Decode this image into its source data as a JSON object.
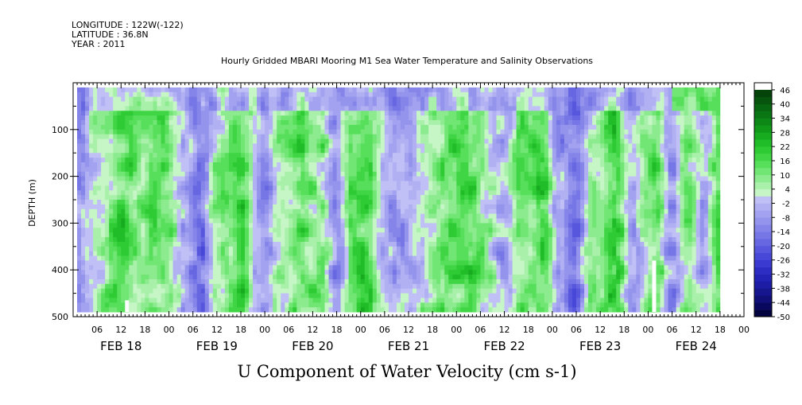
{
  "header": {
    "longitude": "LONGITUDE : 122W(-122)",
    "latitude": "LATITUDE : 36.8N",
    "year": "YEAR : 2011"
  },
  "chart_data": {
    "type": "heatmap",
    "title": "Hourly Gridded MBARI Mooring M1 Sea Water Temperature and Salinity Observations",
    "xlabel": "U Component of Water Velocity (cm s-1)",
    "ylabel": "DEPTH (m)",
    "x_range_hours": [
      0,
      168
    ],
    "data_x_range_hours": [
      1,
      162
    ],
    "ylim": [
      500,
      0
    ],
    "data_y_range": [
      10,
      490
    ],
    "y_ticks": [
      100,
      200,
      300,
      400,
      500
    ],
    "x_hour_ticks": [
      "06",
      "12",
      "18",
      "00",
      "06",
      "12",
      "18",
      "00",
      "06",
      "12",
      "18",
      "00",
      "06",
      "12",
      "18",
      "00",
      "06",
      "12",
      "18",
      "00",
      "06",
      "12",
      "18",
      "00",
      "06",
      "12",
      "18",
      "00"
    ],
    "date_labels": [
      "FEB 18",
      "FEB 19",
      "FEB 20",
      "FEB 21",
      "FEB 22",
      "FEB 23",
      "FEB 24"
    ],
    "colorbar": {
      "labels": [
        "46",
        "40",
        "34",
        "28",
        "22",
        "16",
        "10",
        "4",
        "-2",
        "-8",
        "-14",
        "-20",
        "-26",
        "-32",
        "-38",
        "-44",
        "-50"
      ],
      "levels": [
        -50,
        -47,
        -44,
        -41,
        -38,
        -35,
        -32,
        -29,
        -26,
        -23,
        -20,
        -17,
        -14,
        -11,
        -8,
        -5,
        -2,
        1,
        4,
        7,
        10,
        13,
        16,
        19,
        22,
        25,
        28,
        31,
        34,
        37,
        40,
        43,
        46,
        49
      ],
      "colors": [
        "#02023e",
        "#08085e",
        "#101078",
        "#16168f",
        "#1c1ca4",
        "#2323b6",
        "#2d2dc4",
        "#3a3ad0",
        "#4848d8",
        "#5757de",
        "#6767e2",
        "#7676e6",
        "#8585e9",
        "#9494ed",
        "#a2a2f0",
        "#b0b0f3",
        "#c0c0f6",
        "#c6f6c6",
        "#a9f0aa",
        "#8deb8f",
        "#71e674",
        "#57df5b",
        "#40d545",
        "#2ecb35",
        "#20bd28",
        "#17ac20",
        "#119a1a",
        "#0d8816",
        "#0a7613",
        "#086510",
        "#06540d",
        "#04440a"
      ]
    },
    "missing_gaps": [
      {
        "hours": [
          13,
          14
        ],
        "depth": [
          465,
          490
        ]
      },
      {
        "hours": [
          145,
          146
        ],
        "depth": [
          380,
          490
        ]
      }
    ],
    "grid": false
  }
}
